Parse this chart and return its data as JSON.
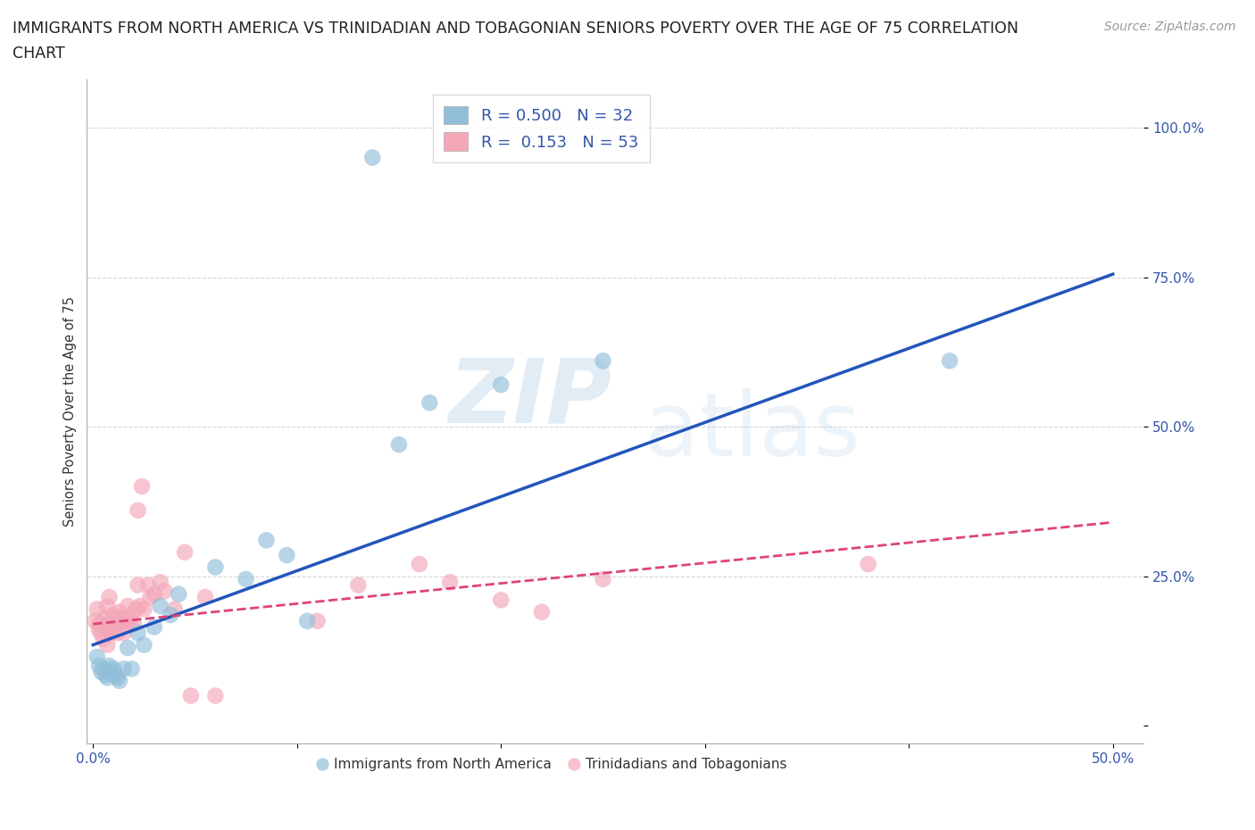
{
  "title": "IMMIGRANTS FROM NORTH AMERICA VS TRINIDADIAN AND TOBAGONIAN SENIORS POVERTY OVER THE AGE OF 75 CORRELATION\nCHART",
  "source": "Source: ZipAtlas.com",
  "ylabel": "Seniors Poverty Over the Age of 75",
  "xlim_min": -0.003,
  "xlim_max": 0.515,
  "ylim_min": -0.03,
  "ylim_max": 1.08,
  "xtick_pos": [
    0.0,
    0.1,
    0.2,
    0.3,
    0.4,
    0.5
  ],
  "xtick_labels": [
    "0.0%",
    "",
    "",
    "",
    "",
    "50.0%"
  ],
  "ytick_pos": [
    0.0,
    0.25,
    0.5,
    0.75,
    1.0
  ],
  "ytick_labels": [
    "",
    "25.0%",
    "50.0%",
    "75.0%",
    "100.0%"
  ],
  "grid_color": "#cccccc",
  "background_color": "#ffffff",
  "blue_color": "#91bfda",
  "pink_color": "#f4a7b8",
  "blue_line_color": "#2255bb",
  "pink_line_color": "#dd4477",
  "legend_blue_R": "0.500",
  "legend_blue_N": "32",
  "legend_pink_R": "0.153",
  "legend_pink_N": "53",
  "title_fontsize": 12.5,
  "axis_label_fontsize": 10.5,
  "tick_fontsize": 11,
  "legend_fontsize": 13,
  "source_fontsize": 10,
  "blue_x": [
    0.002,
    0.003,
    0.004,
    0.005,
    0.006,
    0.007,
    0.008,
    0.009,
    0.01,
    0.011,
    0.012,
    0.013,
    0.015,
    0.017,
    0.019,
    0.022,
    0.025,
    0.03,
    0.033,
    0.038,
    0.042,
    0.06,
    0.075,
    0.085,
    0.095,
    0.105,
    0.15,
    0.165,
    0.2,
    0.25,
    0.42,
    0.137
  ],
  "blue_y": [
    0.115,
    0.1,
    0.09,
    0.095,
    0.085,
    0.08,
    0.1,
    0.09,
    0.095,
    0.085,
    0.08,
    0.075,
    0.095,
    0.13,
    0.095,
    0.155,
    0.135,
    0.165,
    0.2,
    0.185,
    0.22,
    0.265,
    0.245,
    0.31,
    0.285,
    0.175,
    0.47,
    0.54,
    0.57,
    0.61,
    0.61,
    0.95
  ],
  "pink_x": [
    0.001,
    0.002,
    0.003,
    0.003,
    0.004,
    0.005,
    0.005,
    0.006,
    0.006,
    0.007,
    0.007,
    0.008,
    0.008,
    0.009,
    0.01,
    0.01,
    0.011,
    0.012,
    0.012,
    0.013,
    0.013,
    0.014,
    0.015,
    0.015,
    0.016,
    0.017,
    0.018,
    0.019,
    0.02,
    0.021,
    0.022,
    0.023,
    0.025,
    0.027,
    0.028,
    0.03,
    0.033,
    0.035,
    0.04,
    0.045,
    0.048,
    0.055,
    0.06,
    0.11,
    0.13,
    0.16,
    0.175,
    0.2,
    0.22,
    0.25,
    0.38,
    0.022,
    0.024
  ],
  "pink_y": [
    0.175,
    0.195,
    0.16,
    0.17,
    0.155,
    0.145,
    0.17,
    0.165,
    0.18,
    0.135,
    0.2,
    0.155,
    0.215,
    0.155,
    0.165,
    0.185,
    0.17,
    0.155,
    0.18,
    0.17,
    0.19,
    0.175,
    0.155,
    0.18,
    0.17,
    0.2,
    0.175,
    0.185,
    0.17,
    0.195,
    0.235,
    0.2,
    0.195,
    0.235,
    0.215,
    0.22,
    0.24,
    0.225,
    0.195,
    0.29,
    0.05,
    0.215,
    0.05,
    0.175,
    0.235,
    0.27,
    0.24,
    0.21,
    0.19,
    0.245,
    0.27,
    0.36,
    0.4
  ],
  "blue_line_x0": 0.0,
  "blue_line_y0": 0.135,
  "blue_line_x1": 0.5,
  "blue_line_y1": 0.755,
  "pink_line_x0": 0.0,
  "pink_line_y0": 0.17,
  "pink_line_x1": 0.5,
  "pink_line_y1": 0.34
}
